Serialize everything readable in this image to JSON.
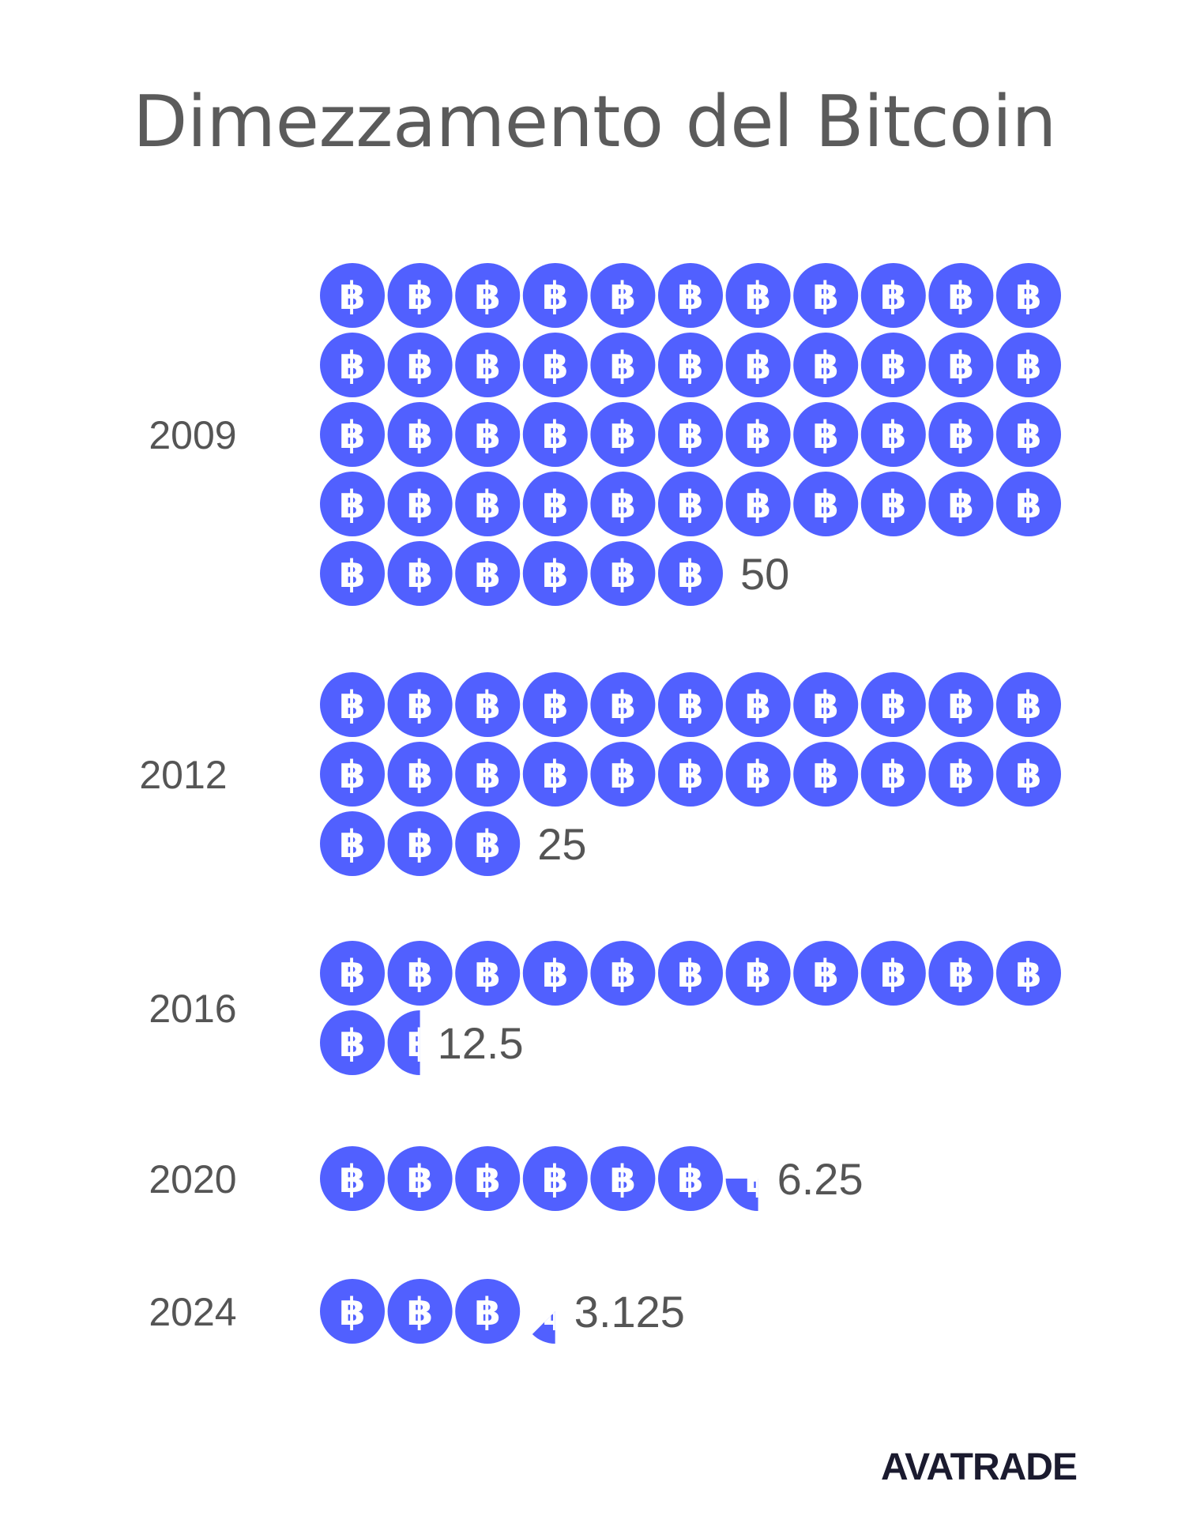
{
  "title": "Dimezzamento del Bitcoin",
  "colors": {
    "coin": "#5160ff",
    "text": "#555555",
    "logo_dark": "#1b1b2f",
    "logo_accent": "#4a55e6"
  },
  "icon": "bitcoin-icon",
  "logo_text": "AVATRADE",
  "chart_data": {
    "type": "pictogram",
    "title": "Dimezzamento del Bitcoin",
    "unit_per_icon": 1,
    "icons_per_row": 11,
    "categories": [
      "2009",
      "2012",
      "2016",
      "2020",
      "2024"
    ],
    "values": [
      50,
      25,
      12.5,
      6.25,
      3.125
    ],
    "value_labels": [
      "50",
      "25",
      "12.5",
      "6.25",
      "3.125"
    ]
  }
}
